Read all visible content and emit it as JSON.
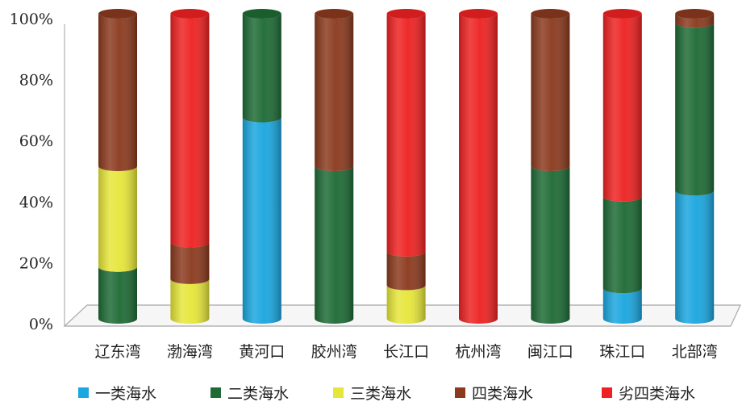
{
  "chart_data": {
    "type": "bar",
    "stacked": true,
    "style": "3d-cylinder",
    "categories": [
      "辽东湾",
      "渤海湾",
      "黄河口",
      "胶州湾",
      "长江口",
      "杭州湾",
      "闽江口",
      "珠江口",
      "北部湾"
    ],
    "series": [
      {
        "name": "一类海水",
        "color": "#1aa6df",
        "values": [
          0,
          0,
          66,
          0,
          0,
          0,
          0,
          10,
          42
        ]
      },
      {
        "name": "二类海水",
        "color": "#1e6b35",
        "values": [
          17,
          0,
          34,
          50,
          0,
          0,
          50,
          30,
          55
        ]
      },
      {
        "name": "三类海水",
        "color": "#e6e63a",
        "values": [
          33,
          13,
          0,
          0,
          11,
          0,
          0,
          0,
          0
        ]
      },
      {
        "name": "四类海水",
        "color": "#8b3a1e",
        "values": [
          50,
          12,
          0,
          50,
          11,
          0,
          50,
          0,
          3
        ]
      },
      {
        "name": "劣四类海水",
        "color": "#ee2222",
        "values": [
          0,
          75,
          0,
          0,
          78,
          100,
          0,
          60,
          0
        ]
      }
    ],
    "yticks": [
      "0%",
      "20%",
      "40%",
      "60%",
      "80%",
      "100%"
    ],
    "ylim": [
      0,
      100
    ],
    "legend_position": "bottom"
  }
}
